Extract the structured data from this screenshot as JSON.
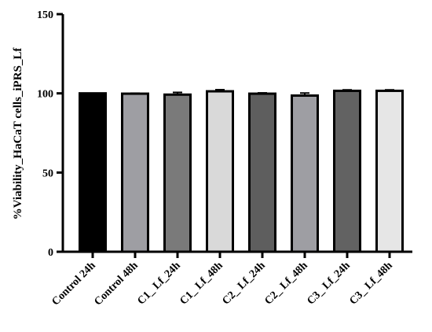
{
  "chart_data": {
    "type": "bar",
    "title": "",
    "xlabel": "",
    "ylabel": "%Viability_HaCaT cells_iPRS_Lf",
    "ylim": [
      0,
      150
    ],
    "yticks": [
      0,
      50,
      100,
      150
    ],
    "grid": false,
    "legend": "none",
    "categories": [
      "Control 24h",
      "Control 48h",
      "C1_ Lf_24h",
      "C1_ Lf_48h",
      "C2_ Lf_24h",
      "C2_ Lf_48h",
      "C3_ Lf_24h",
      "C3_ Lf_48h"
    ],
    "values": [
      100,
      99.8,
      99.2,
      101.3,
      99.8,
      98.6,
      101.6,
      101.6
    ],
    "errors": [
      0,
      0.3,
      1.4,
      1.0,
      0.5,
      1.6,
      0.6,
      0.6
    ],
    "colors": [
      "#000000",
      "#9e9ea3",
      "#7a7a7a",
      "#d9d9d9",
      "#5e5e5e",
      "#9e9ea3",
      "#626262",
      "#e6e6e6"
    ]
  }
}
